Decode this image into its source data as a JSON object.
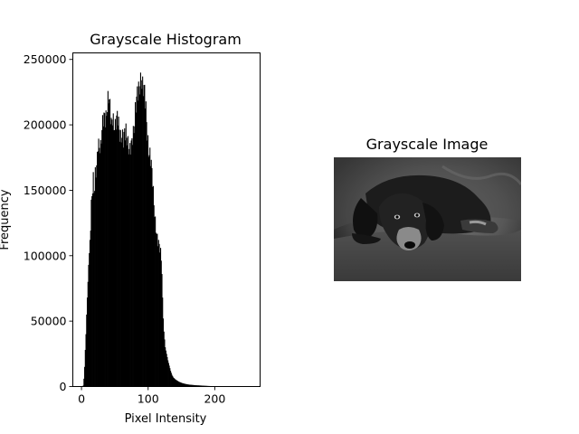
{
  "chart_data": [
    {
      "type": "bar",
      "title": "Grayscale Histogram",
      "xlabel": "Pixel Intensity",
      "ylabel": "Frequency",
      "xlim": [
        -13,
        268
      ],
      "ylim": [
        0,
        255000
      ],
      "xticks": [
        0,
        100,
        200
      ],
      "yticks": [
        0,
        50000,
        100000,
        150000,
        200000,
        250000
      ],
      "bar_color": "#000000",
      "grid": false,
      "legend": "none",
      "bins": 256,
      "profile": [
        [
          0,
          0
        ],
        [
          1,
          0
        ],
        [
          2,
          800
        ],
        [
          3,
          6000
        ],
        [
          4,
          15000
        ],
        [
          5,
          28000
        ],
        [
          6,
          40000
        ],
        [
          7,
          55000
        ],
        [
          8,
          68000
        ],
        [
          9,
          80000
        ],
        [
          10,
          93000
        ],
        [
          11,
          102000
        ],
        [
          12,
          112000
        ],
        [
          13,
          126000
        ],
        [
          14,
          142000
        ],
        [
          15,
          147000
        ],
        [
          16,
          152000
        ],
        [
          17,
          157000
        ],
        [
          18,
          148000
        ],
        [
          19,
          148000
        ],
        [
          20,
          160000
        ],
        [
          22,
          168000
        ],
        [
          24,
          190000
        ],
        [
          26,
          185000
        ],
        [
          28,
          180000
        ],
        [
          30,
          193000
        ],
        [
          32,
          205000
        ],
        [
          34,
          210000
        ],
        [
          36,
          208000
        ],
        [
          38,
          213000
        ],
        [
          40,
          218000
        ],
        [
          42,
          212000
        ],
        [
          44,
          203000
        ],
        [
          46,
          210000
        ],
        [
          48,
          200000
        ],
        [
          50,
          195000
        ],
        [
          52,
          202000
        ],
        [
          54,
          207000
        ],
        [
          56,
          200000
        ],
        [
          58,
          192000
        ],
        [
          60,
          190000
        ],
        [
          62,
          185000
        ],
        [
          64,
          193000
        ],
        [
          66,
          198000
        ],
        [
          68,
          192000
        ],
        [
          70,
          182000
        ],
        [
          72,
          178000
        ],
        [
          74,
          182000
        ],
        [
          76,
          192000
        ],
        [
          78,
          200000
        ],
        [
          80,
          212000
        ],
        [
          82,
          218000
        ],
        [
          84,
          222000
        ],
        [
          86,
          228000
        ],
        [
          88,
          236000
        ],
        [
          89,
          243000
        ],
        [
          90,
          234000
        ],
        [
          92,
          228000
        ],
        [
          94,
          222000
        ],
        [
          96,
          210000
        ],
        [
          98,
          195000
        ],
        [
          100,
          183000
        ],
        [
          102,
          178000
        ],
        [
          104,
          168000
        ],
        [
          106,
          155000
        ],
        [
          108,
          140000
        ],
        [
          110,
          128000
        ],
        [
          112,
          118000
        ],
        [
          114,
          110000
        ],
        [
          116,
          106000
        ],
        [
          118,
          102000
        ],
        [
          119,
          98000
        ],
        [
          120,
          86000
        ],
        [
          121,
          68000
        ],
        [
          122,
          52000
        ],
        [
          123,
          42000
        ],
        [
          124,
          36000
        ],
        [
          125,
          30000
        ],
        [
          127,
          25000
        ],
        [
          129,
          20000
        ],
        [
          131,
          16000
        ],
        [
          133,
          12000
        ],
        [
          135,
          9000
        ],
        [
          137,
          7000
        ],
        [
          140,
          5500
        ],
        [
          145,
          3800
        ],
        [
          150,
          2700
        ],
        [
          155,
          2000
        ],
        [
          160,
          1500
        ],
        [
          170,
          1000
        ],
        [
          180,
          700
        ],
        [
          190,
          400
        ],
        [
          200,
          250
        ],
        [
          210,
          150
        ],
        [
          220,
          80
        ],
        [
          230,
          40
        ],
        [
          240,
          20
        ],
        [
          255,
          0
        ]
      ]
    },
    {
      "type": "image",
      "title": "Grayscale Image",
      "image_subject": "grayscale photo of a dog lying down"
    }
  ]
}
